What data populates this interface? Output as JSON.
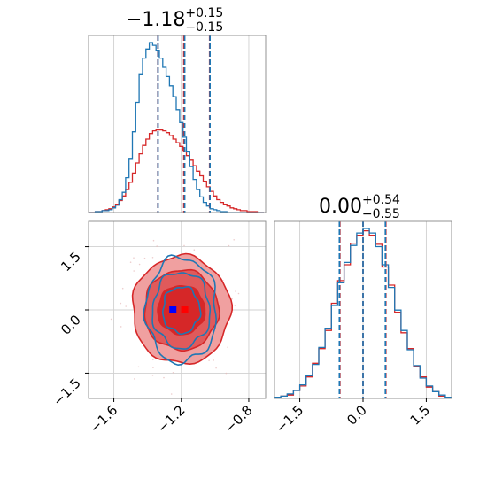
{
  "chart_data": {
    "type": "corner",
    "titles": [
      {
        "median": "−1.18",
        "plus": "+0.15",
        "minus": "−0.15"
      },
      {
        "median": "0.00",
        "plus": "+0.54",
        "minus": "−0.55"
      }
    ],
    "series_colors": {
      "blue": "#1f77b4",
      "red": "#d62728"
    },
    "truth_colors": {
      "blue": "#0000ff",
      "red": "#ff0000"
    },
    "param1": {
      "range": [
        -1.75,
        -0.7
      ],
      "ticks": [
        -1.6,
        -1.2,
        -0.8
      ],
      "tick_labels": [
        "−1.6",
        "−1.2",
        "−0.8"
      ]
    },
    "param2": {
      "range": [
        -2.1,
        2.1
      ],
      "ticks": [
        -1.5,
        0.0,
        1.5
      ],
      "tick_labels": [
        "−1.5",
        "0.0",
        "1.5"
      ]
    },
    "hist1": {
      "blue": {
        "bins": [
          -1.75,
          -1.73,
          -1.71,
          -1.69,
          -1.67,
          -1.65,
          -1.63,
          -1.61,
          -1.59,
          -1.57,
          -1.55,
          -1.53,
          -1.51,
          -1.49,
          -1.47,
          -1.45,
          -1.43,
          -1.41,
          -1.39,
          -1.37,
          -1.35,
          -1.33,
          -1.31,
          -1.29,
          -1.27,
          -1.25,
          -1.23,
          -1.21,
          -1.19,
          -1.17,
          -1.15,
          -1.13,
          -1.11,
          -1.09,
          -1.07,
          -1.05,
          -1.03,
          -1.01,
          -0.99,
          -0.97,
          -0.95,
          -0.93,
          -0.91,
          -0.89,
          -0.87,
          -0.85,
          -0.83,
          -0.81,
          -0.79,
          -0.77,
          -0.75,
          -0.73,
          -0.71
        ],
        "counts": [
          0,
          0,
          1,
          1,
          2,
          2,
          3,
          5,
          8,
          14,
          22,
          38,
          58,
          88,
          120,
          150,
          168,
          178,
          185,
          182,
          176,
          168,
          158,
          148,
          138,
          126,
          112,
          98,
          82,
          66,
          50,
          36,
          25,
          17,
          11,
          7,
          4,
          3,
          2,
          1,
          1,
          0,
          0,
          0,
          0,
          0,
          0,
          0,
          0,
          0,
          0,
          0
        ]
      },
      "red": {
        "bins": [
          -1.75,
          -1.73,
          -1.71,
          -1.69,
          -1.67,
          -1.65,
          -1.63,
          -1.61,
          -1.59,
          -1.57,
          -1.55,
          -1.53,
          -1.51,
          -1.49,
          -1.47,
          -1.45,
          -1.43,
          -1.41,
          -1.39,
          -1.37,
          -1.35,
          -1.33,
          -1.31,
          -1.29,
          -1.27,
          -1.25,
          -1.23,
          -1.21,
          -1.19,
          -1.17,
          -1.15,
          -1.13,
          -1.11,
          -1.09,
          -1.07,
          -1.05,
          -1.03,
          -1.01,
          -0.99,
          -0.97,
          -0.95,
          -0.93,
          -0.91,
          -0.89,
          -0.87,
          -0.85,
          -0.83,
          -0.81,
          -0.79,
          -0.77,
          -0.75,
          -0.73,
          -0.71
        ],
        "counts": [
          0,
          0,
          1,
          1,
          2,
          3,
          4,
          6,
          9,
          13,
          18,
          25,
          33,
          43,
          54,
          64,
          73,
          80,
          86,
          89,
          90,
          90,
          89,
          87,
          84,
          80,
          76,
          72,
          67,
          62,
          57,
          51,
          45,
          40,
          34,
          28,
          23,
          18,
          14,
          11,
          9,
          7,
          5,
          4,
          3,
          2,
          2,
          1,
          1,
          1,
          0,
          0
        ]
      },
      "blue_quantiles": [
        -1.338,
        -1.18,
        -1.03
      ],
      "red_quantiles": [
        -1.339,
        -1.185,
        -1.032
      ]
    },
    "hist2": {
      "blue": {
        "bins": [
          -2.1,
          -1.95,
          -1.8,
          -1.65,
          -1.5,
          -1.35,
          -1.2,
          -1.05,
          -0.9,
          -0.75,
          -0.6,
          -0.45,
          -0.3,
          -0.15,
          0.0,
          0.15,
          0.3,
          0.45,
          0.6,
          0.75,
          0.9,
          1.05,
          1.2,
          1.35,
          1.5,
          1.65,
          1.8,
          1.95,
          2.1
        ],
        "counts": [
          1,
          2,
          4,
          7,
          12,
          20,
          30,
          45,
          62,
          82,
          102,
          120,
          135,
          146,
          150,
          146,
          134,
          118,
          98,
          78,
          60,
          43,
          29,
          18,
          11,
          6,
          3,
          1
        ]
      },
      "red": {
        "bins": [
          -2.1,
          -1.95,
          -1.8,
          -1.65,
          -1.5,
          -1.35,
          -1.2,
          -1.05,
          -0.9,
          -0.75,
          -0.6,
          -0.45,
          -0.3,
          -0.15,
          0.0,
          0.15,
          0.3,
          0.45,
          0.6,
          0.75,
          0.9,
          1.05,
          1.2,
          1.35,
          1.5,
          1.65,
          1.8,
          1.95,
          2.1
        ],
        "counts": [
          1,
          2,
          3,
          7,
          11,
          19,
          31,
          44,
          60,
          84,
          104,
          118,
          137,
          144,
          148,
          144,
          136,
          116,
          100,
          76,
          58,
          44,
          28,
          19,
          10,
          6,
          2,
          1
        ]
      },
      "blue_quantiles": [
        -0.56,
        0.0,
        0.53
      ],
      "red_quantiles": [
        -0.55,
        0.0,
        0.54
      ]
    },
    "contours": {
      "center": [
        -1.2,
        0.0
      ],
      "red_fill_levels": [
        {
          "rx": 0.14,
          "ry": 0.58,
          "color": "#d62728"
        },
        {
          "rx": 0.22,
          "ry": 0.95,
          "color": "#e05a5b"
        },
        {
          "rx": 0.29,
          "ry": 1.28,
          "color": "#f0a0a0"
        }
      ],
      "blue_levels": [
        {
          "rx": 0.11,
          "ry": 0.55
        },
        {
          "rx": 0.17,
          "ry": 0.9
        },
        {
          "rx": 0.21,
          "ry": 1.25
        }
      ]
    },
    "truths": {
      "blue": [
        -1.25,
        0.0
      ],
      "red": [
        -1.18,
        0.0
      ]
    }
  }
}
